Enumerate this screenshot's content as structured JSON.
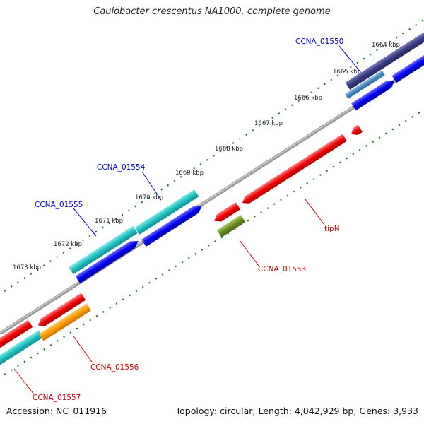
{
  "title": "Caulobacter crescentus NA1000, complete genome",
  "footer": {
    "accession": "Accession: NC_011916",
    "summary": "Topology: circular; Length: 4,042,929 bp; Genes: 3,933"
  },
  "ruler_labels": [
    "1664 kbp",
    "1665 kbp",
    "1666 kbp",
    "1667 kbp",
    "1668 kbp",
    "1669 kbp",
    "1670 kbp",
    "1671 kbp",
    "1672 kbp",
    "1673 kbp"
  ],
  "gene_labels": [
    {
      "id": "ccna-01550",
      "text": "CCNA_01550",
      "color": "#0000cc"
    },
    {
      "id": "ccna-01554",
      "text": "CCNA_01554",
      "color": "#0000cc"
    },
    {
      "id": "ccna-01555",
      "text": "CCNA_01555",
      "color": "#0000cc"
    },
    {
      "id": "tipn",
      "text": "tipN",
      "color": "#cc0000"
    },
    {
      "id": "ccna-01553",
      "text": "CCNA_01553",
      "color": "#cc0000"
    },
    {
      "id": "ccna-01556",
      "text": "CCNA_01556",
      "color": "#cc0000"
    },
    {
      "id": "ccna-01557",
      "text": "CCNA_01557",
      "color": "#cc0000"
    }
  ],
  "colors": {
    "backbone": "#8c8c8c",
    "ruler_ticks": "#1a7a1a",
    "forward_cds": "#0000ee",
    "forward_gene": "#20c0c0",
    "reverse_cds": "#ee0000",
    "rrna": "#ff9900",
    "trna": "#6b8e23",
    "other": "#3a3a80"
  }
}
